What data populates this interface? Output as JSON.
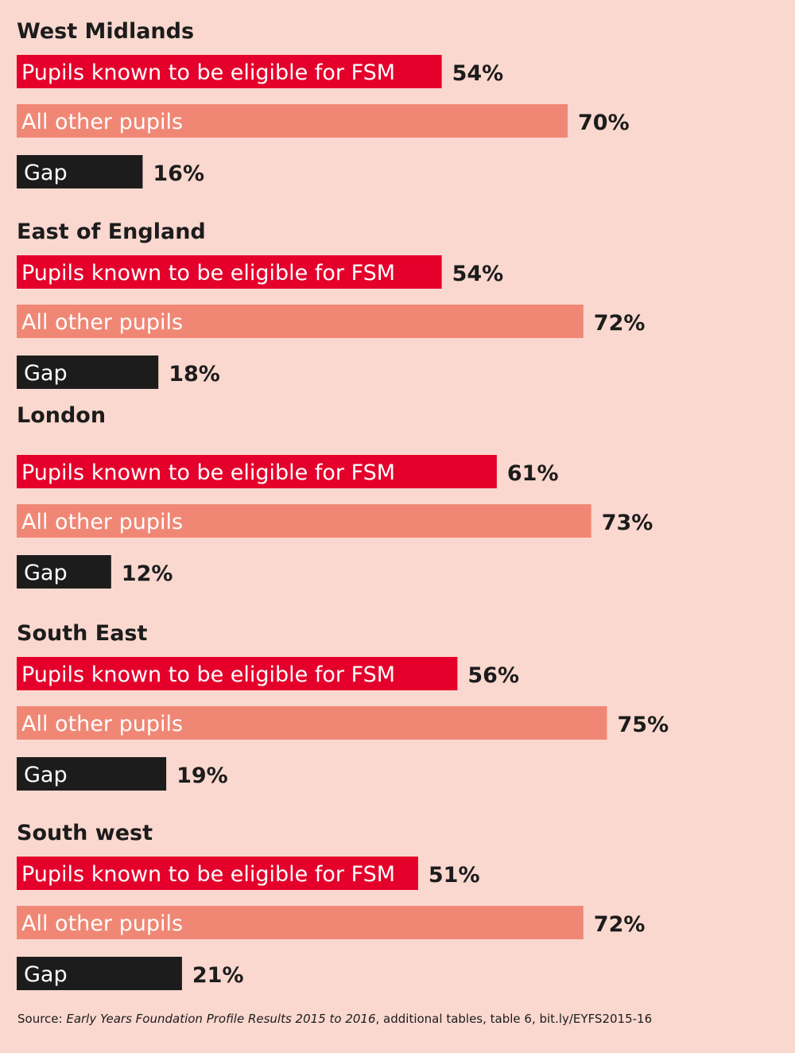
{
  "colors": {
    "background": "#fad8cf",
    "fsm": "#e4002b",
    "others": "#f08775",
    "gap": "#1c1c1c"
  },
  "chart_data": {
    "type": "bar",
    "orientation": "horizontal",
    "unit": "%",
    "xlim": [
      0,
      100
    ],
    "series_names": [
      "Pupils known to be eligible for FSM",
      "All other pupils",
      "Gap"
    ],
    "regions": [
      {
        "name": "West Midlands",
        "values": [
          54,
          70,
          16
        ],
        "labels": [
          "54%",
          "70%",
          "16%"
        ]
      },
      {
        "name": "East of England",
        "values": [
          54,
          72,
          18
        ],
        "labels": [
          "54%",
          "72%",
          "18%"
        ]
      },
      {
        "name": "London",
        "values": [
          61,
          73,
          12
        ],
        "labels": [
          "61%",
          "73%",
          "12%"
        ]
      },
      {
        "name": "South East",
        "values": [
          56,
          75,
          19
        ],
        "labels": [
          "56%",
          "75%",
          "19%"
        ]
      },
      {
        "name": "South west",
        "values": [
          51,
          72,
          21
        ],
        "labels": [
          "51%",
          "72%",
          "21%"
        ]
      }
    ]
  },
  "source": {
    "prefix": "Source: ",
    "title": "Early Years Foundation Profile Results 2015 to 2016",
    "suffix": ", additional tables, table 6, bit.ly/EYFS2015-16"
  }
}
